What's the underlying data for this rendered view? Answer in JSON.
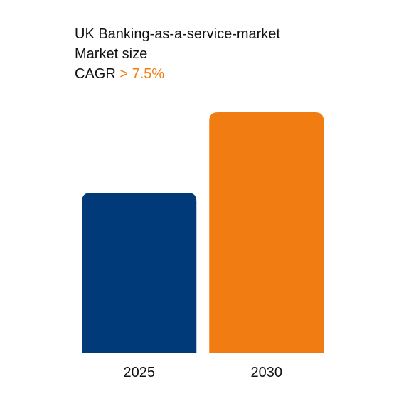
{
  "chart_data": {
    "type": "bar",
    "title": "UK Banking-as-a-service-market",
    "subtitle": "Market size",
    "cagr_label": "CAGR",
    "cagr_value": "> 7.5%",
    "cagr_color": "#f07c12",
    "categories": [
      "2025",
      "2030"
    ],
    "values": [
      2,
      3
    ],
    "colors": [
      "#003a78",
      "#f07c12"
    ],
    "ylim": [
      0,
      3
    ],
    "grid": false
  }
}
